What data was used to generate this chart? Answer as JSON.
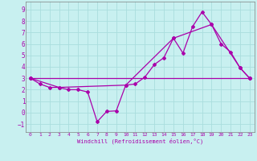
{
  "xlabel": "Windchill (Refroidissement éolien,°C)",
  "xlim": [
    -0.5,
    23.5
  ],
  "ylim": [
    -1.7,
    9.7
  ],
  "yticks": [
    -1,
    0,
    1,
    2,
    3,
    4,
    5,
    6,
    7,
    8,
    9
  ],
  "xticks": [
    0,
    1,
    2,
    3,
    4,
    5,
    6,
    7,
    8,
    9,
    10,
    11,
    12,
    13,
    14,
    15,
    16,
    17,
    18,
    19,
    20,
    21,
    22,
    23
  ],
  "bg_color": "#c8f0f0",
  "line_color": "#aa00aa",
  "grid_color": "#aadddd",
  "line1_x": [
    0,
    1,
    2,
    3,
    4,
    5,
    6,
    7,
    8,
    9,
    10,
    11,
    12,
    13,
    14,
    15,
    16,
    17,
    18,
    19,
    20,
    21,
    22,
    23
  ],
  "line1_y": [
    3.0,
    2.5,
    2.2,
    2.2,
    2.0,
    2.0,
    1.8,
    -0.8,
    0.1,
    0.15,
    2.4,
    2.5,
    3.1,
    4.2,
    4.8,
    6.5,
    5.2,
    7.5,
    8.8,
    7.7,
    6.0,
    5.3,
    3.9,
    3.0
  ],
  "line2_x": [
    0,
    3,
    10,
    15,
    19,
    22,
    23
  ],
  "line2_y": [
    3.0,
    2.2,
    2.4,
    6.5,
    7.7,
    3.9,
    3.0
  ],
  "line3_x": [
    0,
    23
  ],
  "line3_y": [
    3.0,
    3.0
  ]
}
